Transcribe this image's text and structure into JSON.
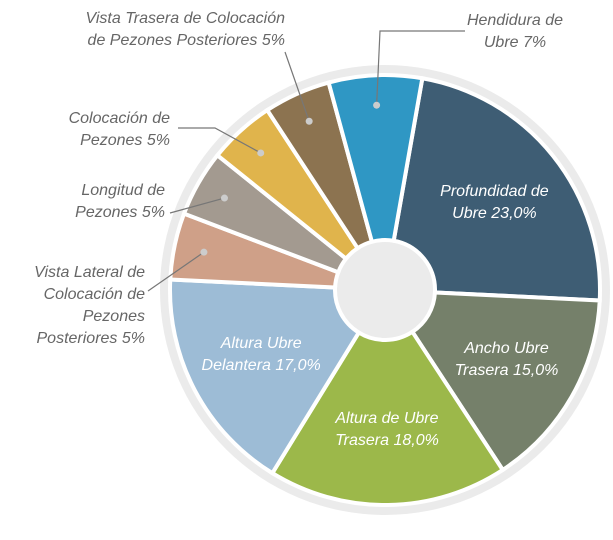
{
  "chart_data": {
    "type": "donut",
    "categories": [
      "Profundidad de Ubre",
      "Ancho Ubre Trasera",
      "Altura de Ubre Trasera",
      "Altura Ubre Delantera",
      "Vista Lateral de Colocación de Pezones Posteriores",
      "Longitud de Pezones",
      "Colocación de Pezones",
      "Vista Trasera de Colocación de Pezones Posteriores",
      "Hendidura de Ubre"
    ],
    "values": [
      23,
      15,
      18,
      17,
      5,
      5,
      5,
      5,
      7
    ],
    "value_labels": [
      "23,0%",
      "15,0%",
      "18,0%",
      "17,0%",
      "5%",
      "5%",
      "5%",
      "5%",
      "7%"
    ],
    "colors": [
      "#3e5d74",
      "#75806a",
      "#9cb84a",
      "#9dbcd6",
      "#cfa088",
      "#a39a90",
      "#e0b44c",
      "#8c7350",
      "#2f97c4"
    ]
  }
}
